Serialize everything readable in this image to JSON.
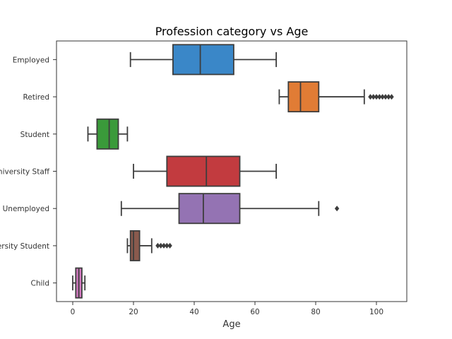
{
  "chart_data": {
    "type": "boxplot",
    "orientation": "horizontal",
    "title": "Profession category vs Age",
    "xlabel": "Age",
    "ylabel": "",
    "xlim": [
      -5,
      110
    ],
    "xticks": [
      0,
      20,
      40,
      60,
      80,
      100
    ],
    "grid": false,
    "categories": [
      "Employed",
      "Retired",
      "Student",
      "University Staff",
      "Unemployed",
      "University Student",
      "Child"
    ],
    "series": [
      {
        "category": "Employed",
        "whisker_low": 19,
        "q1": 33,
        "median": 42,
        "q3": 53,
        "whisker_high": 67,
        "outliers": [],
        "color": "#3a87c8"
      },
      {
        "category": "Retired",
        "whisker_low": 68,
        "q1": 71,
        "median": 75,
        "q3": 81,
        "whisker_high": 96,
        "outliers": [
          98,
          99,
          100,
          101,
          102,
          103,
          104,
          105
        ],
        "color": "#e17c35"
      },
      {
        "category": "Student",
        "whisker_low": 5,
        "q1": 8,
        "median": 12,
        "q3": 15,
        "whisker_high": 18,
        "outliers": [],
        "color": "#3a9a3a"
      },
      {
        "category": "University Staff",
        "whisker_low": 20,
        "q1": 31,
        "median": 44,
        "q3": 55,
        "whisker_high": 67,
        "outliers": [],
        "color": "#c23b3f"
      },
      {
        "category": "Unemployed",
        "whisker_low": 16,
        "q1": 35,
        "median": 43,
        "q3": 55,
        "whisker_high": 81,
        "outliers": [
          87
        ],
        "color": "#9473b3"
      },
      {
        "category": "University Student",
        "whisker_low": 18,
        "q1": 19,
        "median": 20,
        "q3": 22,
        "whisker_high": 26,
        "outliers": [
          28,
          29,
          30,
          31,
          32
        ],
        "color": "#8a5a4d"
      },
      {
        "category": "Child",
        "whisker_low": 0,
        "q1": 1,
        "median": 2,
        "q3": 3,
        "whisker_high": 4,
        "outliers": [],
        "color": "#d27ac0"
      }
    ],
    "line_color": "#3d3d3d"
  }
}
